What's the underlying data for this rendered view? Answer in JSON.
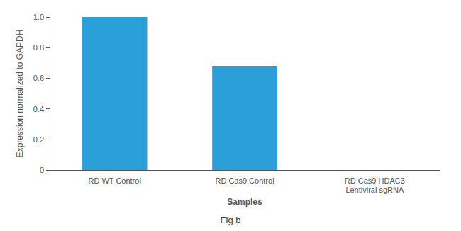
{
  "chart_data": {
    "type": "bar",
    "title": "Fig b",
    "categories": [
      "RD WT Control",
      "RD Cas9 Control",
      "RD Cas9 HDAC3\nLentiviral sgRNA"
    ],
    "values": [
      1.0,
      0.68,
      0.0
    ],
    "color": "#2b9fd8",
    "xlabel": "Samples",
    "ylabel": "Expression normalized to GAPDH",
    "ylim": [
      0,
      1.0
    ],
    "yticks": [
      0,
      0.2,
      0.4,
      0.6,
      0.8,
      {
        "value": 1.0,
        "label": "1.0"
      }
    ],
    "grid": false
  }
}
